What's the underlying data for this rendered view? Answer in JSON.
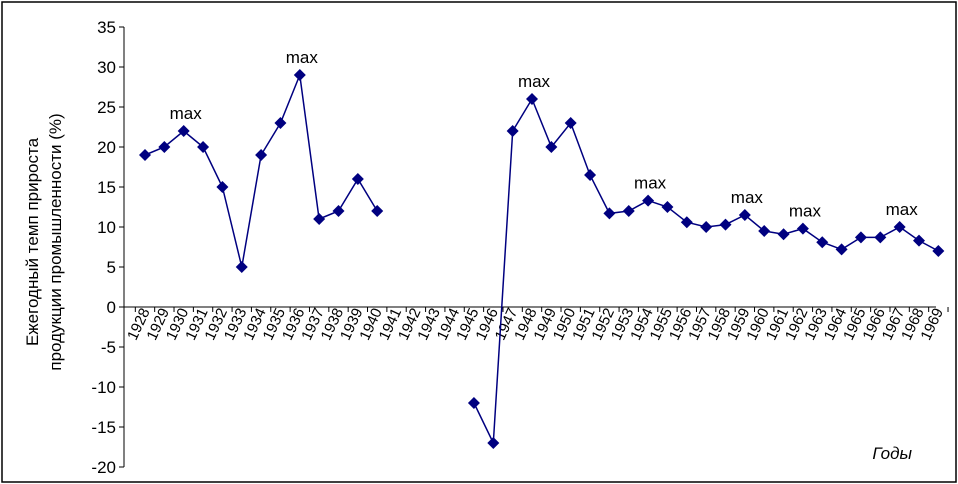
{
  "chart_data": {
    "type": "line",
    "ylabel_line1": "Ежегодный темп прироста",
    "ylabel_line2": "продукции промышленности (%)",
    "xlabel": "Годы",
    "ylim": [
      -20,
      35
    ],
    "ytick_step": 5,
    "grid": false,
    "line_color": "#000080",
    "marker_color": "#000080",
    "categories": [
      "1928",
      "1929",
      "1930",
      "1931",
      "1932",
      "1933",
      "1934",
      "1935",
      "1936",
      "1937",
      "1938",
      "1939",
      "1940",
      "1941",
      "1942",
      "1943",
      "1944",
      "1945",
      "1946",
      "1947",
      "1948",
      "1949",
      "1950",
      "1951",
      "1952",
      "1953",
      "1954",
      "1955",
      "1956",
      "1957",
      "1958",
      "1959",
      "1960",
      "1961",
      "1962",
      "1963",
      "1964",
      "1965",
      "1966",
      "1967",
      "1968",
      "1969"
    ],
    "values": [
      19,
      20,
      22,
      20,
      15,
      5,
      19,
      23,
      29,
      11,
      12,
      16,
      12,
      null,
      null,
      null,
      null,
      -12,
      -17,
      22,
      26,
      20,
      23,
      16.5,
      11.7,
      12,
      13.3,
      12.5,
      10.6,
      10,
      10.3,
      11.5,
      9.5,
      9.1,
      9.8,
      8.1,
      7.2,
      8.7,
      8.7,
      10,
      8.3,
      7
    ],
    "annotations": [
      {
        "category": "1930",
        "text": "max"
      },
      {
        "category": "1936",
        "text": "max"
      },
      {
        "category": "1948",
        "text": "max"
      },
      {
        "category": "1954",
        "text": "max"
      },
      {
        "category": "1959",
        "text": "max"
      },
      {
        "category": "1962",
        "text": "max"
      },
      {
        "category": "1967",
        "text": "max"
      }
    ]
  }
}
